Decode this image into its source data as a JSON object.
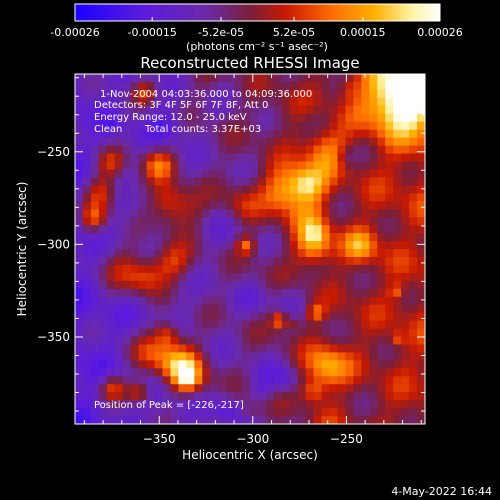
{
  "chart_data": {
    "type": "heatmap",
    "title": "Reconstructed RHESSI Image",
    "xlabel": "Heliocentric X (arcsec)",
    "ylabel": "Heliocentric Y (arcsec)",
    "xlim": [
      -395,
      -208
    ],
    "ylim": [
      -397,
      -208
    ],
    "x_ticks": [
      -350,
      -300,
      -250
    ],
    "y_ticks": [
      -250,
      -300,
      -350
    ],
    "colorbar": {
      "ticks": [
        -0.00026,
        -0.00015,
        -5.2e-05,
        5.2e-05,
        0.00015,
        0.00026
      ],
      "tick_labels": [
        "-0.00026",
        "-0.00015",
        "-5.2e-05",
        "5.2e-05",
        "0.00015",
        "0.00026"
      ],
      "unit_label": "(photons cm⁻² s⁻¹ asec⁻²)",
      "range": [
        -0.00026,
        0.00026
      ],
      "colormap_stops": [
        "#1a00ff",
        "#5a1ae0",
        "#6a2aa8",
        "#7a1f3a",
        "#c81a00",
        "#ff6a00",
        "#ffb000",
        "#fff2a0",
        "#ffffff"
      ]
    },
    "annotations": {
      "time_range": "1-Nov-2004 04:03:36.000 to 04:09:36.000",
      "detectors": "Detectors: 3F 4F 5F 6F 7F 8F, Att 0",
      "energy": "Energy Range: 12.0 - 25.0 keV",
      "method": "Clean",
      "total_counts": "Total counts: 3.37E+03",
      "peak": "Position of Peak = [-226,-217]"
    },
    "peak_position": [
      -226,
      -217
    ],
    "footer_date": "4-May-2022 16:44"
  }
}
